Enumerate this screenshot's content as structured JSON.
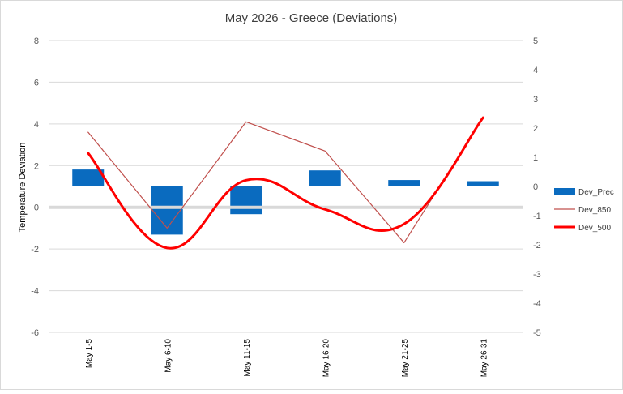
{
  "chart_data": {
    "type": "combo",
    "title": "May 2026 - Greece (Deviations)",
    "ylabel": "Temperature Deviation",
    "y2label": "",
    "xlabel": "",
    "categories": [
      "May 1-5",
      "May 6-10",
      "May 11-15",
      "May 16-20",
      "May 21-25",
      "May 26-31"
    ],
    "ylim": [
      -6,
      8
    ],
    "y_ticks": [
      8,
      6,
      4,
      2,
      0,
      -2,
      -4,
      -6
    ],
    "y2lim": [
      -5,
      5
    ],
    "y2_ticks": [
      5,
      4,
      3,
      2,
      1,
      0,
      -1,
      -2,
      -3,
      -4,
      -5
    ],
    "grid": true,
    "legend_position": "right",
    "series": [
      {
        "name": "Dev_Prec",
        "kind": "bar",
        "axis": "secondary",
        "color": "#0a6bbf",
        "values": [
          0.58,
          -1.65,
          -0.95,
          0.55,
          0.22,
          0.18
        ]
      },
      {
        "name": "Dev_850",
        "kind": "line",
        "axis": "primary",
        "color": "#c0504d",
        "smooth": false,
        "values": [
          3.6,
          -1.0,
          4.1,
          2.7,
          -1.7,
          4.3
        ]
      },
      {
        "name": "Dev_500",
        "kind": "line",
        "axis": "primary",
        "color": "#ff0000",
        "smooth": true,
        "values": [
          2.6,
          -1.95,
          1.3,
          -0.1,
          -0.8,
          4.3
        ]
      }
    ]
  }
}
